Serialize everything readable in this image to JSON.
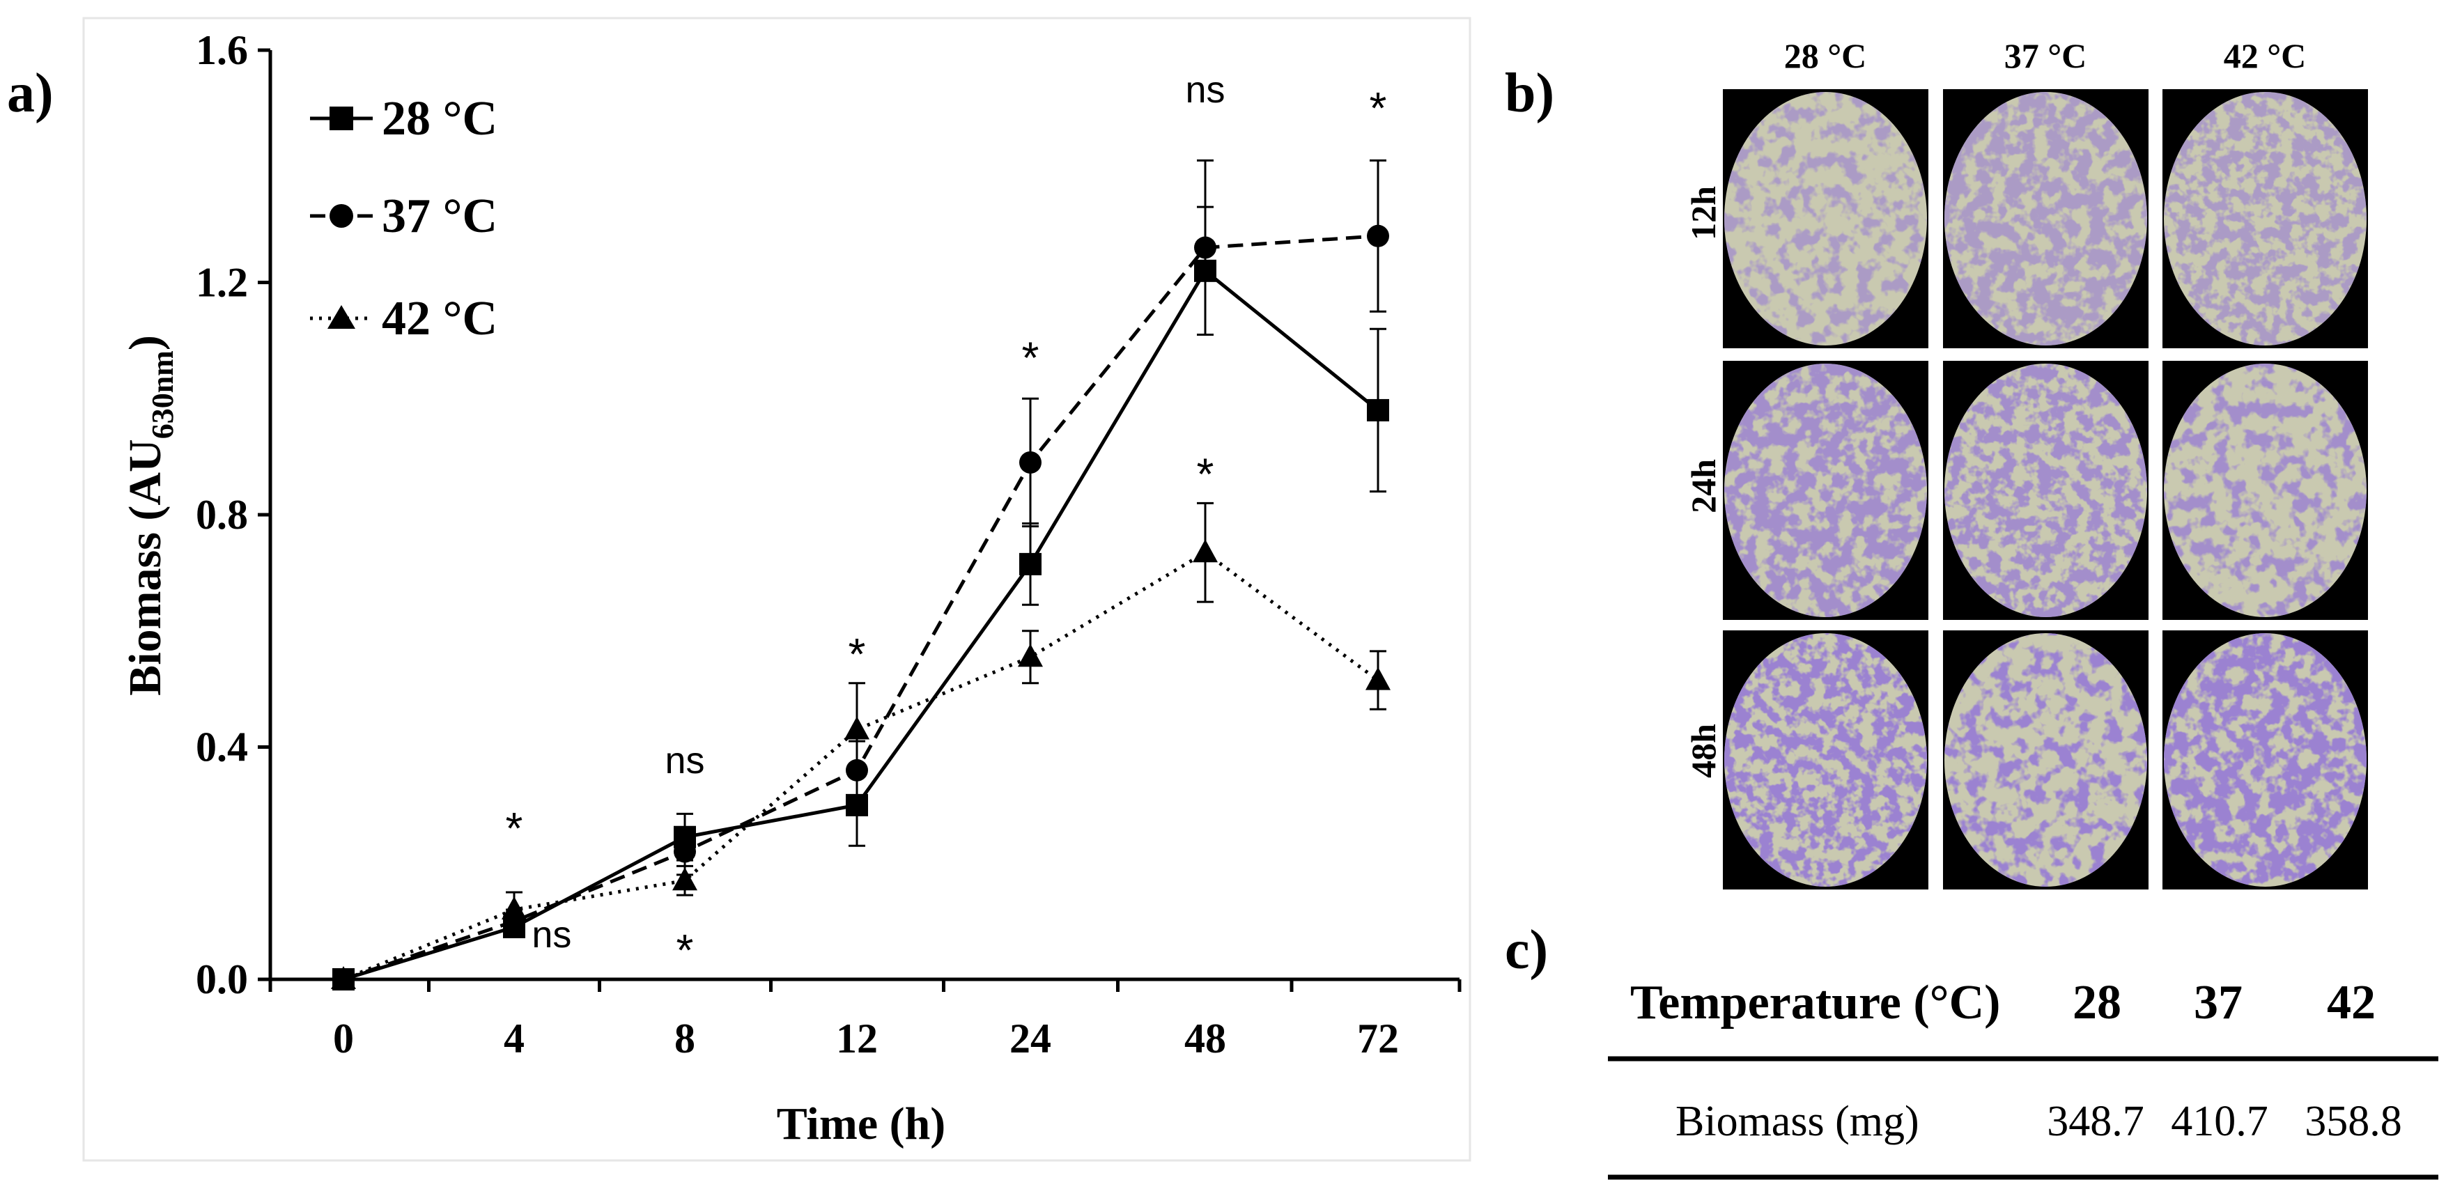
{
  "panels": {
    "a": "a)",
    "b": "b)",
    "c": "c)"
  },
  "chart_data": {
    "type": "line",
    "title": "",
    "xlabel": "Time (h)",
    "ylabel_main": "Biomass (AU",
    "ylabel_sub": "630nm",
    "ylabel_close": ")",
    "categories": [
      "0",
      "4",
      "8",
      "12",
      "24",
      "48",
      "72"
    ],
    "ylim": [
      0,
      1.6
    ],
    "yticks": [
      "0.0",
      "0.4",
      "0.8",
      "1.2",
      "1.6"
    ],
    "ytick_values": [
      0,
      0.4,
      0.8,
      1.2,
      1.6
    ],
    "legend_position": "top-left",
    "series": [
      {
        "name": "28 °C",
        "marker": "square",
        "dash": "solid",
        "values": [
          0.0,
          0.09,
          0.245,
          0.3,
          0.715,
          1.22,
          0.98
        ],
        "errors": [
          0.0,
          0.015,
          0.04,
          0.07,
          0.07,
          0.11,
          0.14
        ]
      },
      {
        "name": "37 °C",
        "marker": "circle",
        "dash": "dashed",
        "values": [
          0.0,
          0.1,
          0.22,
          0.36,
          0.89,
          1.26,
          1.28
        ],
        "errors": [
          0.0,
          0.02,
          0.04,
          0.05,
          0.11,
          0.15,
          0.13
        ]
      },
      {
        "name": "42 °C",
        "marker": "triangle",
        "dash": "dotted",
        "values": [
          0.0,
          0.12,
          0.17,
          0.43,
          0.555,
          0.735,
          0.515
        ],
        "errors": [
          0.0,
          0.03,
          0.025,
          0.08,
          0.045,
          0.085,
          0.05
        ]
      }
    ],
    "annotations": [
      {
        "text": "*",
        "x_index": 1,
        "y": 0.27
      },
      {
        "text": "ns",
        "x_index": 1.22,
        "y": 0.055
      },
      {
        "text": "ns",
        "x_index": 2,
        "y": 0.355
      },
      {
        "text": "*",
        "x_index": 2,
        "y": 0.06
      },
      {
        "text": "*",
        "x_index": 3,
        "y": 0.57
      },
      {
        "text": "*",
        "x_index": 4,
        "y": 1.08
      },
      {
        "text": "*",
        "x_index": 5,
        "y": 0.88
      },
      {
        "text": "ns",
        "x_index": 5,
        "y": 1.51
      },
      {
        "text": "*",
        "x_index": 6,
        "y": 1.51
      }
    ]
  },
  "micrographs": {
    "columns": [
      "28 °C",
      "37 °C",
      "42 °C"
    ],
    "rows": [
      "12h",
      "24h",
      "48h"
    ],
    "colors": {
      "well_bg": "#c9c9b0",
      "stain": "#4b2fb0",
      "frame": "#000000"
    }
  },
  "table": {
    "header_label": "Temperature (°C)",
    "header_values": [
      "28",
      "37",
      "42"
    ],
    "row_label": "Biomass (mg)",
    "row_values": [
      "348.7",
      "410.7",
      "358.8"
    ]
  }
}
